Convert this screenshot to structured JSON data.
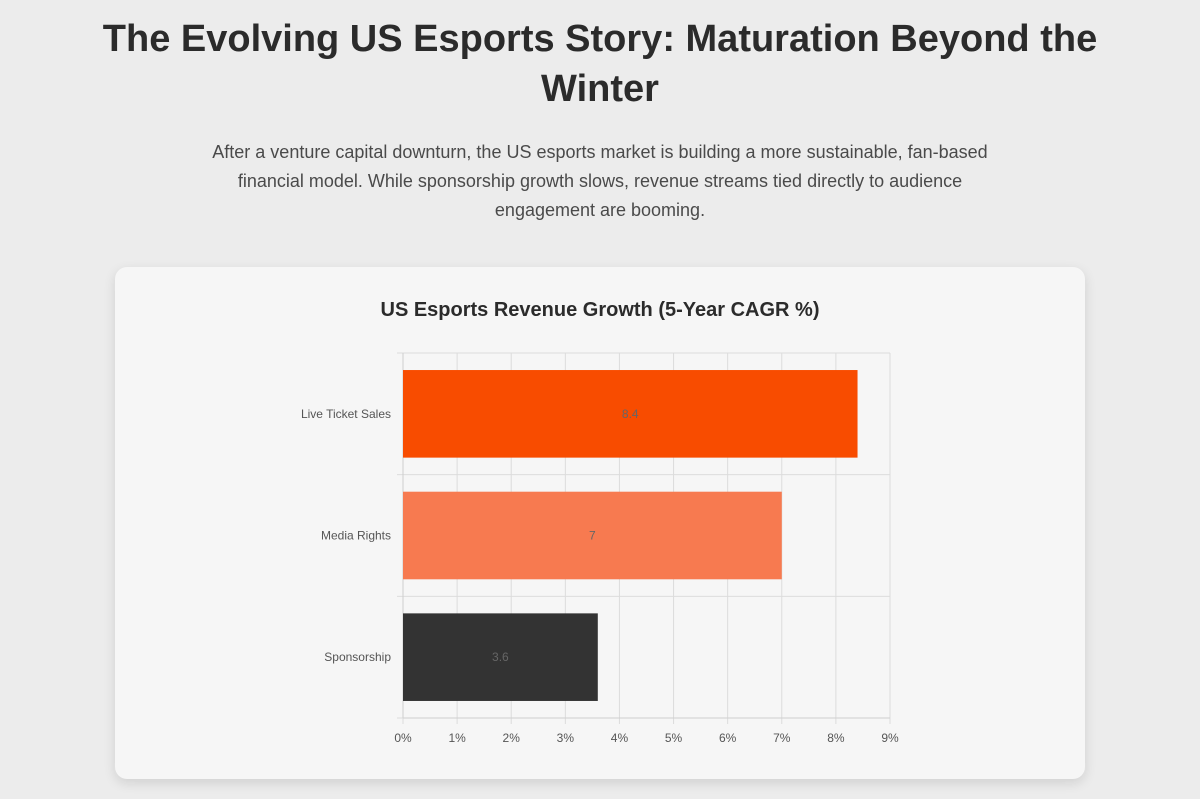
{
  "header": {
    "title": "The Evolving US Esports Story: Maturation Beyond the Winter",
    "intro": "After a venture capital downturn, the US esports market is building a more sustainable, fan-based financial model. While sponsorship growth slows, revenue streams tied directly to audience engagement are booming."
  },
  "chart_data": {
    "type": "bar",
    "orientation": "horizontal",
    "title": "US Esports Revenue Growth (5-Year CAGR %)",
    "xlabel": "",
    "ylabel": "",
    "categories": [
      "Live Ticket Sales",
      "Media Rights",
      "Sponsorship"
    ],
    "values": [
      8.4,
      7,
      3.6
    ],
    "value_labels": [
      "8.4",
      "7",
      "3.6"
    ],
    "bar_colors": [
      "#f84c00",
      "#f77a50",
      "#333333"
    ],
    "xlim": [
      0,
      9
    ],
    "x_ticks": [
      0,
      1,
      2,
      3,
      4,
      5,
      6,
      7,
      8,
      9
    ],
    "x_tick_labels": [
      "0%",
      "1%",
      "2%",
      "3%",
      "4%",
      "5%",
      "6%",
      "7%",
      "8%",
      "9%"
    ],
    "grid": true,
    "legend": "none"
  }
}
